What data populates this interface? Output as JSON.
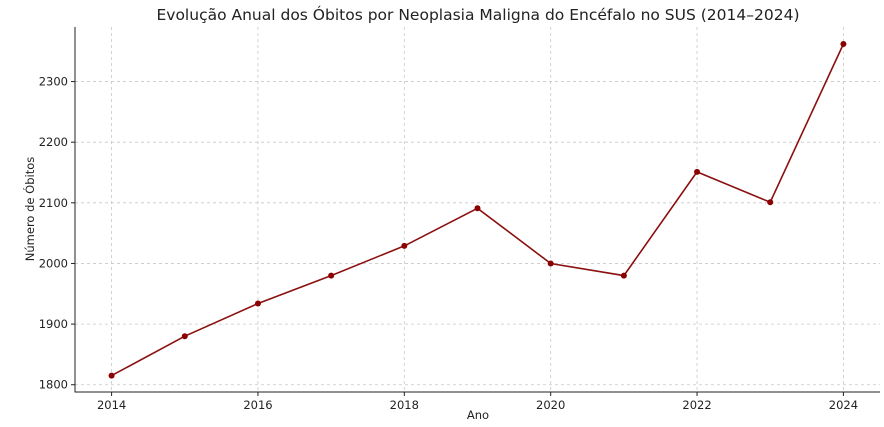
{
  "chart_data": {
    "type": "line",
    "title": "Evolução Anual dos Óbitos por Neoplasia Maligna do Encéfalo no SUS (2014–2024)",
    "xlabel": "Ano",
    "ylabel": "Número de Óbitos",
    "x": [
      2014,
      2015,
      2016,
      2017,
      2018,
      2019,
      2020,
      2021,
      2022,
      2023,
      2024
    ],
    "values": [
      1815,
      1880,
      1934,
      1980,
      2029,
      2091,
      2000,
      1980,
      2151,
      2101,
      2362
    ],
    "xticks": [
      "2014",
      "2016",
      "2018",
      "2020",
      "2022",
      "2024"
    ],
    "yticks": [
      "1800",
      "1900",
      "2000",
      "2100",
      "2200",
      "2300"
    ],
    "xlim": [
      2013.5,
      2024.5
    ],
    "ylim": [
      1788,
      2390
    ],
    "grid": true,
    "marker": "circle",
    "colors": {
      "line": "#8b1010",
      "marker": "#8b0000"
    }
  }
}
